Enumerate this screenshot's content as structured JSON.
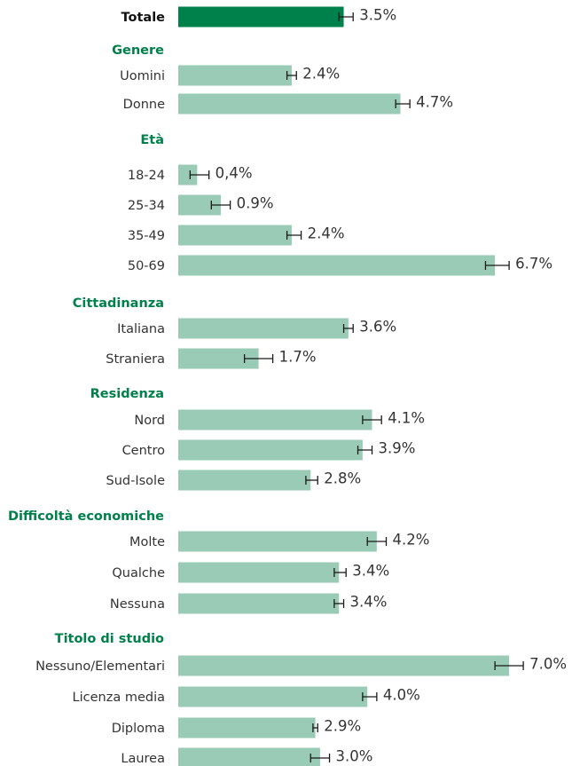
{
  "chart_data": {
    "type": "bar",
    "orientation": "horizontal",
    "grid": false,
    "legend": "none",
    "colors": {
      "total_bar": "#00804a",
      "bar": "#99cbb6",
      "group_header": "#00804a",
      "error_bar": "#1a1a1a"
    },
    "groups": [
      {
        "header": "",
        "items": [
          {
            "label": "Totale",
            "value": 3.5,
            "value_label": "3.5%",
            "ci": [
              3.4,
              3.7
            ],
            "total": true
          }
        ]
      },
      {
        "header": "Genere",
        "items": [
          {
            "label": "Uomini",
            "value": 2.4,
            "value_label": "2.4%",
            "ci": [
              2.3,
              2.5
            ]
          },
          {
            "label": "Donne",
            "value": 4.7,
            "value_label": "4.7%",
            "ci": [
              4.6,
              4.9
            ]
          }
        ]
      },
      {
        "header": "Età",
        "items": [
          {
            "label": "18-24",
            "value": 0.4,
            "value_label": "0,4%",
            "ci": [
              0.25,
              0.65
            ]
          },
          {
            "label": "25-34",
            "value": 0.9,
            "value_label": "0.9%",
            "ci": [
              0.7,
              1.1
            ]
          },
          {
            "label": "35-49",
            "value": 2.4,
            "value_label": "2.4%",
            "ci": [
              2.3,
              2.6
            ]
          },
          {
            "label": "50-69",
            "value": 6.7,
            "value_label": "6.7%",
            "ci": [
              6.5,
              7.0
            ]
          }
        ]
      },
      {
        "header": "Cittadinanza",
        "items": [
          {
            "label": "Italiana",
            "value": 3.6,
            "value_label": "3.6%",
            "ci": [
              3.5,
              3.7
            ]
          },
          {
            "label": "Straniera",
            "value": 1.7,
            "value_label": "1.7%",
            "ci": [
              1.4,
              2.0
            ]
          }
        ]
      },
      {
        "header": "Residenza",
        "items": [
          {
            "label": "Nord",
            "value": 4.1,
            "value_label": "4.1%",
            "ci": [
              3.9,
              4.3
            ]
          },
          {
            "label": "Centro",
            "value": 3.9,
            "value_label": "3.9%",
            "ci": [
              3.8,
              4.1
            ]
          },
          {
            "label": "Sud-Isole",
            "value": 2.8,
            "value_label": "2.8%",
            "ci": [
              2.7,
              2.95
            ]
          }
        ]
      },
      {
        "header": "Difficoltà economiche",
        "items": [
          {
            "label": "Molte",
            "value": 4.2,
            "value_label": "4.2%",
            "ci": [
              4.0,
              4.4
            ]
          },
          {
            "label": "Qualche",
            "value": 3.4,
            "value_label": "3.4%",
            "ci": [
              3.3,
              3.55
            ]
          },
          {
            "label": "Nessuna",
            "value": 3.4,
            "value_label": "3.4%",
            "ci": [
              3.3,
              3.5
            ]
          }
        ]
      },
      {
        "header": "Titolo di studio",
        "items": [
          {
            "label": "Nessuno/Elementari",
            "value": 7.0,
            "value_label": "7.0%",
            "ci": [
              6.7,
              7.3
            ]
          },
          {
            "label": "Licenza media",
            "value": 4.0,
            "value_label": "4.0%",
            "ci": [
              3.9,
              4.2
            ]
          },
          {
            "label": "Diploma",
            "value": 2.9,
            "value_label": "2.9%",
            "ci": [
              2.85,
              2.95
            ]
          },
          {
            "label": "Laurea",
            "value": 3.0,
            "value_label": "3.0%",
            "ci": [
              2.8,
              3.2
            ]
          }
        ]
      }
    ]
  }
}
